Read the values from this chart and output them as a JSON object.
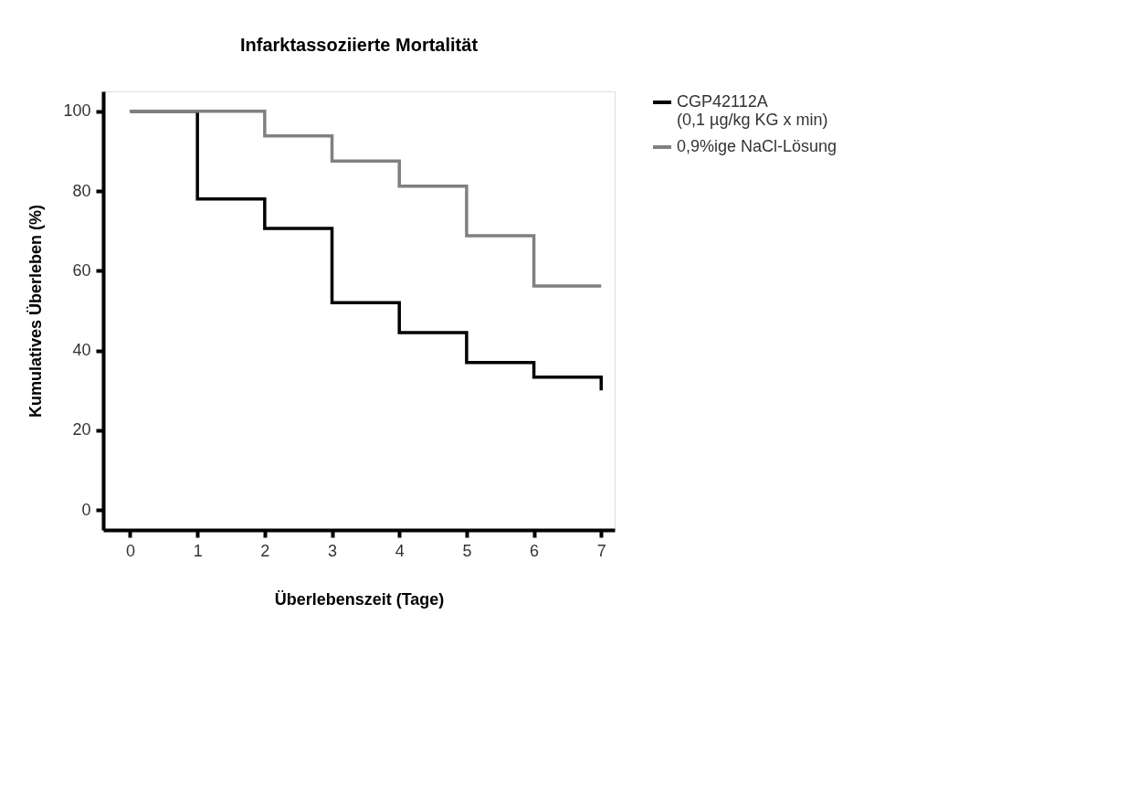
{
  "chart_data": {
    "type": "step",
    "title": "Infarktassoziierte Mortalität",
    "xlabel": "Überlebenszeit (Tage)",
    "ylabel": "Kumulatives Überleben (%)",
    "x": [
      0,
      1,
      2,
      3,
      4,
      5,
      6,
      7
    ],
    "series": [
      {
        "name": "CGP42112A\n(0,1 µg/kg KG x min)",
        "color": "#000000",
        "values": [
          100,
          78,
          70.6,
          52,
          44.5,
          37,
          33.3,
          30
        ]
      },
      {
        "name": "0,9%ige NaCl-Lösung",
        "color": "#808080",
        "values": [
          100,
          100,
          93.8,
          87.5,
          81.2,
          68.8,
          56.2,
          56.2
        ]
      }
    ],
    "xlim": [
      -0.4,
      7.2
    ],
    "xticks": [
      0,
      1,
      2,
      3,
      4,
      5,
      6,
      7
    ],
    "ylim": [
      -5,
      105
    ],
    "yticks": [
      0,
      20,
      40,
      60,
      80,
      100
    ],
    "grid": false,
    "legend": "top right",
    "marker": "none",
    "line_style": "solid"
  }
}
